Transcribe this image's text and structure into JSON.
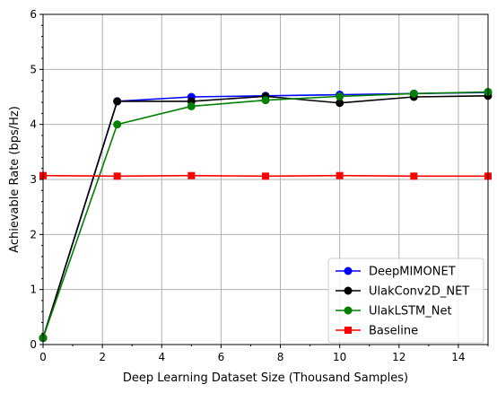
{
  "chart_data": {
    "type": "line",
    "title": "",
    "xlabel": "Deep Learning Dataset Size (Thousand Samples)",
    "ylabel": "Achievable Rate (bps/Hz)",
    "xlim": [
      0,
      15
    ],
    "ylim": [
      0,
      6
    ],
    "xticks": [
      0,
      2,
      4,
      6,
      8,
      10,
      12,
      14
    ],
    "yticks": [
      0,
      1,
      2,
      3,
      4,
      5,
      6
    ],
    "grid": true,
    "legend_position": "lower-right",
    "x": [
      0,
      2.5,
      5,
      7.5,
      10,
      12.5,
      15
    ],
    "series": [
      {
        "name": "DeepMIMONET",
        "color": "#0000ff",
        "marker": "circle",
        "values": [
          0.12,
          4.42,
          4.5,
          4.52,
          4.54,
          4.56,
          4.58
        ]
      },
      {
        "name": "UlakConv2D_NET",
        "color": "#000000",
        "marker": "circle",
        "values": [
          0.12,
          4.42,
          4.42,
          4.51,
          4.39,
          4.5,
          4.52
        ]
      },
      {
        "name": "UlakLSTM_Net",
        "color": "#008000",
        "marker": "circle",
        "values": [
          0.12,
          4.0,
          4.33,
          4.44,
          4.51,
          4.56,
          4.59
        ]
      },
      {
        "name": "Baseline",
        "color": "#ff0000",
        "marker": "square",
        "values": [
          3.07,
          3.06,
          3.07,
          3.06,
          3.07,
          3.06,
          3.06
        ]
      }
    ]
  }
}
